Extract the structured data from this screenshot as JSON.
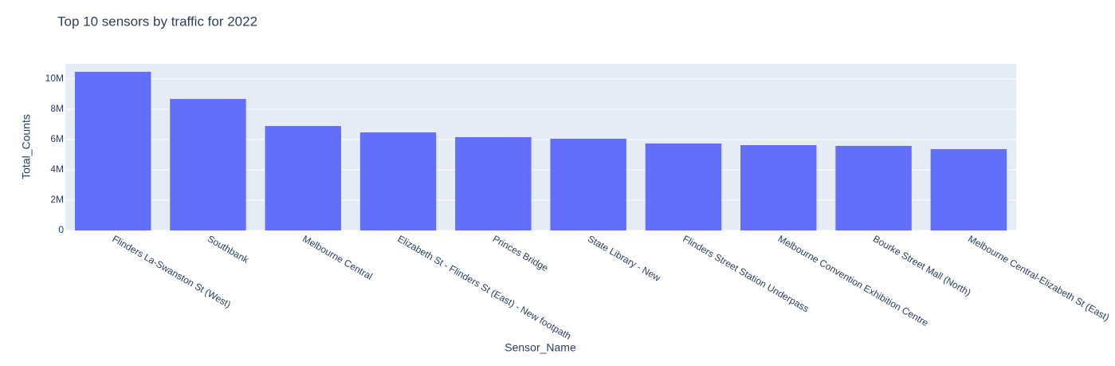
{
  "chart_data": {
    "type": "bar",
    "title": "Top 10 sensors by traffic for 2022",
    "x_label": "Sensor_Name",
    "y_label": "Total_Counts",
    "categories": [
      "Flinders La-Swanston St (West)",
      "Southbank",
      "Melbourne Central",
      "Elizabeth St - Flinders St (East) - New footpath",
      "Princes Bridge",
      "State Library - New",
      "Flinders Street Station Underpass",
      "Melbourne Convention Exhibition Centre",
      "Bourke Street Mall (North)",
      "Melbourne Central-Elizabeth St (East)"
    ],
    "values": [
      10470000,
      8680000,
      6890000,
      6470000,
      6160000,
      6050000,
      5740000,
      5630000,
      5580000,
      5370000
    ],
    "color": "#636efa",
    "ylim": [
      0,
      11000000
    ],
    "yticks": [
      0,
      {
        "value": 2000000,
        "label": "2M"
      },
      {
        "value": 4000000,
        "label": "4M"
      },
      {
        "value": 6000000,
        "label": "6M"
      },
      {
        "value": 8000000,
        "label": "8M"
      },
      {
        "value": 10000000,
        "label": "10M"
      }
    ],
    "grid": true
  }
}
